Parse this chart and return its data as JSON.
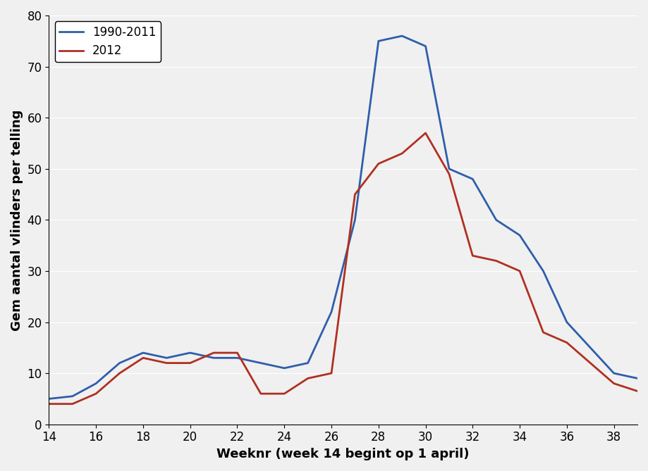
{
  "weeks": [
    14,
    15,
    16,
    17,
    18,
    19,
    20,
    21,
    22,
    23,
    24,
    25,
    26,
    27,
    28,
    29,
    30,
    31,
    32,
    33,
    34,
    35,
    36,
    37,
    38,
    39
  ],
  "series_1990_2011": [
    5,
    5.5,
    8,
    12,
    14,
    13,
    14,
    13,
    13,
    12,
    11,
    12,
    22,
    40,
    75,
    76,
    74,
    50,
    48,
    40,
    37,
    30,
    20,
    15,
    10,
    9
  ],
  "series_2012": [
    4,
    4,
    6,
    10,
    13,
    12,
    12,
    14,
    14,
    6,
    6,
    9,
    10,
    45,
    51,
    53,
    57,
    49,
    33,
    32,
    30,
    18,
    16,
    12,
    8,
    6.5
  ],
  "color_1990_2011": "#2E5EAA",
  "color_2012": "#B03020",
  "ylabel": "Gem aantal vlinders per telling",
  "xlabel": "Weeknr (week 14 begint op 1 april)",
  "legend_1990_2011": "1990-2011",
  "legend_2012": "2012",
  "ylim": [
    0,
    80
  ],
  "yticks": [
    0,
    10,
    20,
    30,
    40,
    50,
    60,
    70,
    80
  ],
  "xticks": [
    14,
    16,
    18,
    20,
    22,
    24,
    26,
    28,
    30,
    32,
    34,
    36,
    38
  ],
  "xlim": [
    14,
    39
  ],
  "background_color": "#F0F0F0",
  "line_width": 2.0
}
